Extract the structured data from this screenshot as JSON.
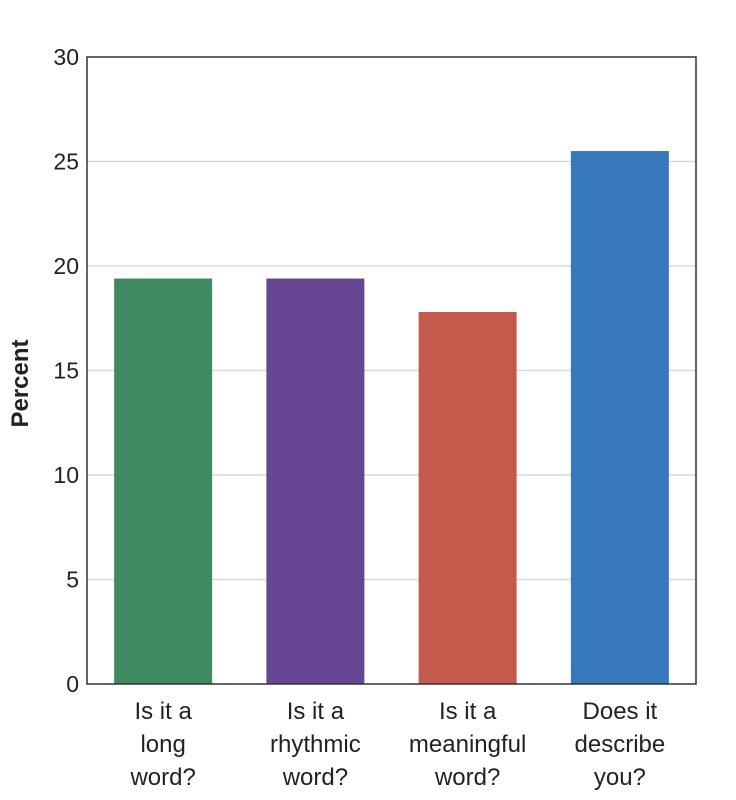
{
  "chart_data": {
    "type": "bar",
    "title": "",
    "xlabel": "",
    "ylabel": "Percent",
    "ylim": [
      0,
      30
    ],
    "yticks": [
      0,
      5,
      10,
      15,
      20,
      25,
      30
    ],
    "grid": true,
    "categories": [
      [
        "Is it a",
        "long",
        "word?"
      ],
      [
        "Is it a",
        "rhythmic",
        "word?"
      ],
      [
        "Is it a",
        "meaningful",
        "word?"
      ],
      [
        "Does it",
        "describe",
        "you?"
      ]
    ],
    "values": [
      19.4,
      19.4,
      17.8,
      25.5
    ],
    "colors": [
      "#3f8a5f",
      "#664592",
      "#c45a4c",
      "#3778bd"
    ]
  },
  "style": {
    "grid_color": "#d9d9d9",
    "axis_color": "#333333"
  }
}
